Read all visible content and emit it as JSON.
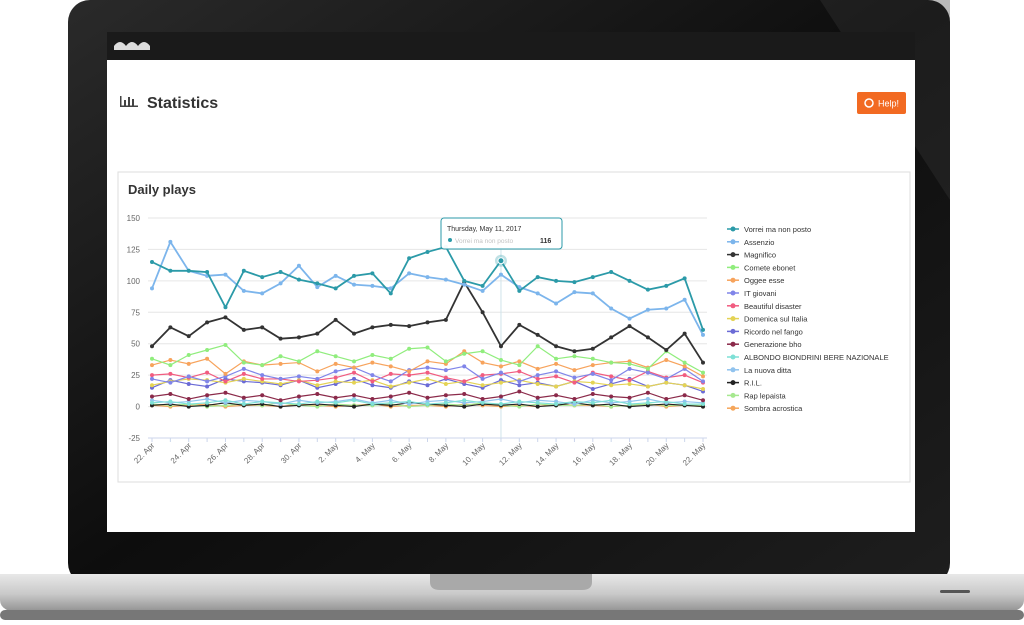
{
  "header": {
    "title": "Statistics",
    "help_button": "Help!"
  },
  "panel": {
    "title": "Daily plays"
  },
  "chart_data": {
    "type": "line",
    "categories": [
      "22. Apr",
      null,
      "24. Apr",
      null,
      "26. Apr",
      null,
      "28. Apr",
      null,
      "30. Apr",
      null,
      "2. May",
      null,
      "4. May",
      null,
      "6. May",
      null,
      "8. May",
      null,
      "10. May",
      null,
      "12. May",
      null,
      "14. May",
      null,
      "16. May",
      null,
      "18. May",
      null,
      "20. May",
      null,
      "22. May"
    ],
    "ylim": [
      -25,
      150
    ],
    "yticks": [
      -25,
      0,
      25,
      50,
      75,
      100,
      125,
      150
    ],
    "grid": true,
    "legend": "right",
    "tooltip": {
      "title": "Thursday, May 11, 2017",
      "series": 0,
      "index": 19
    },
    "series": [
      {
        "name": "Vorrei ma non posto",
        "color": "#2b9aa8",
        "values": [
          115,
          108,
          108,
          107,
          79,
          108,
          103,
          107,
          101,
          98,
          94,
          104,
          106,
          90,
          118,
          123,
          127,
          100,
          96,
          116,
          92,
          103,
          100,
          99,
          103,
          107,
          100,
          93,
          96,
          102,
          61
        ]
      },
      {
        "name": "Assenzio",
        "color": "#7cb5ec",
        "values": [
          94,
          131,
          108,
          104,
          105,
          92,
          90,
          98,
          112,
          95,
          104,
          97,
          96,
          94,
          106,
          103,
          101,
          97,
          92,
          105,
          95,
          90,
          82,
          91,
          90,
          78,
          70,
          77,
          78,
          85,
          57
        ]
      },
      {
        "name": "Magnifico",
        "color": "#333333",
        "values": [
          48,
          63,
          56,
          67,
          71,
          61,
          63,
          54,
          55,
          58,
          69,
          58,
          63,
          65,
          64,
          67,
          69,
          99,
          75,
          48,
          65,
          57,
          48,
          44,
          46,
          55,
          64,
          55,
          45,
          58,
          35
        ]
      },
      {
        "name": "Comete ebonet",
        "color": "#90ed7d",
        "values": [
          38,
          33,
          41,
          45,
          49,
          35,
          33,
          40,
          36,
          44,
          40,
          36,
          41,
          38,
          46,
          47,
          36,
          42,
          44,
          37,
          33,
          48,
          38,
          40,
          38,
          35,
          34,
          30,
          44,
          35,
          27
        ]
      },
      {
        "name": "Oggee esse",
        "color": "#f7a35c",
        "values": [
          33,
          37,
          34,
          38,
          26,
          36,
          33,
          34,
          35,
          28,
          34,
          31,
          35,
          32,
          28,
          36,
          34,
          44,
          35,
          32,
          36,
          30,
          34,
          29,
          33,
          35,
          36,
          31,
          37,
          32,
          24
        ]
      },
      {
        "name": "IT giovani",
        "color": "#8085e9",
        "values": [
          22,
          19,
          24,
          20,
          24,
          30,
          25,
          22,
          24,
          22,
          28,
          31,
          25,
          20,
          29,
          31,
          29,
          32,
          22,
          27,
          20,
          25,
          28,
          23,
          26,
          21,
          30,
          27,
          22,
          30,
          20
        ]
      },
      {
        "name": "Beautiful disaster",
        "color": "#f15c80",
        "values": [
          25,
          26,
          23,
          27,
          20,
          26,
          22,
          22,
          20,
          21,
          23,
          27,
          20,
          26,
          25,
          27,
          23,
          20,
          25,
          26,
          28,
          22,
          24,
          19,
          27,
          24,
          21,
          28,
          23,
          25,
          19
        ]
      },
      {
        "name": "Domenica sul Italia",
        "color": "#e4d354",
        "values": [
          17,
          20,
          22,
          21,
          19,
          22,
          20,
          18,
          21,
          17,
          20,
          19,
          21,
          16,
          19,
          22,
          18,
          20,
          17,
          19,
          21,
          18,
          16,
          20,
          19,
          17,
          18,
          16,
          19,
          17,
          14
        ]
      },
      {
        "name": "Ricordo nel fango",
        "color": "#6b6bd6",
        "values": [
          15,
          21,
          18,
          16,
          22,
          20,
          19,
          17,
          21,
          15,
          18,
          22,
          17,
          15,
          20,
          17,
          22,
          18,
          15,
          21,
          17,
          19,
          16,
          20,
          14,
          18,
          22,
          16,
          19,
          17,
          12
        ]
      },
      {
        "name": "Generazione bho",
        "color": "#8b2a4a",
        "values": [
          8,
          10,
          6,
          9,
          11,
          7,
          9,
          5,
          8,
          10,
          7,
          9,
          6,
          8,
          11,
          7,
          9,
          10,
          6,
          8,
          12,
          7,
          9,
          6,
          10,
          8,
          7,
          11,
          6,
          9,
          5
        ]
      },
      {
        "name": "ALBONDO BIONDRINI BERE NAZIONALE",
        "color": "#7ee0d6",
        "values": [
          3,
          4,
          2,
          3,
          5,
          2,
          4,
          3,
          2,
          4,
          3,
          5,
          2,
          3,
          4,
          2,
          3,
          5,
          3,
          2,
          4,
          3,
          2,
          4,
          3,
          5,
          2,
          3,
          4,
          2,
          2
        ]
      },
      {
        "name": "La nuova ditta",
        "color": "#91c3ee",
        "values": [
          5,
          3,
          4,
          6,
          3,
          5,
          4,
          2,
          5,
          3,
          4,
          6,
          3,
          5,
          2,
          4,
          5,
          3,
          4,
          6,
          3,
          5,
          4,
          2,
          5,
          3,
          4,
          6,
          3,
          4,
          3
        ]
      },
      {
        "name": "R.I.L.",
        "color": "#222222",
        "values": [
          1,
          2,
          0,
          1,
          3,
          1,
          2,
          0,
          1,
          2,
          1,
          0,
          2,
          1,
          3,
          2,
          1,
          0,
          2,
          1,
          2,
          0,
          1,
          3,
          1,
          2,
          0,
          1,
          2,
          1,
          0
        ]
      },
      {
        "name": "Rap lepaista",
        "color": "#a6e88f",
        "values": [
          2,
          1,
          2,
          0,
          1,
          2,
          1,
          3,
          1,
          0,
          2,
          1,
          1,
          2,
          0,
          1,
          2,
          1,
          3,
          1,
          0,
          2,
          1,
          1,
          2,
          0,
          1,
          2,
          1,
          1,
          1
        ]
      },
      {
        "name": "Sombra acrostica",
        "color": "#f5a65b",
        "values": [
          1,
          0,
          1,
          2,
          0,
          1,
          1,
          0,
          2,
          1,
          0,
          1,
          2,
          0,
          1,
          1,
          0,
          2,
          1,
          0,
          1,
          0,
          2,
          1,
          1,
          0,
          1,
          2,
          0,
          1,
          0
        ]
      }
    ]
  }
}
